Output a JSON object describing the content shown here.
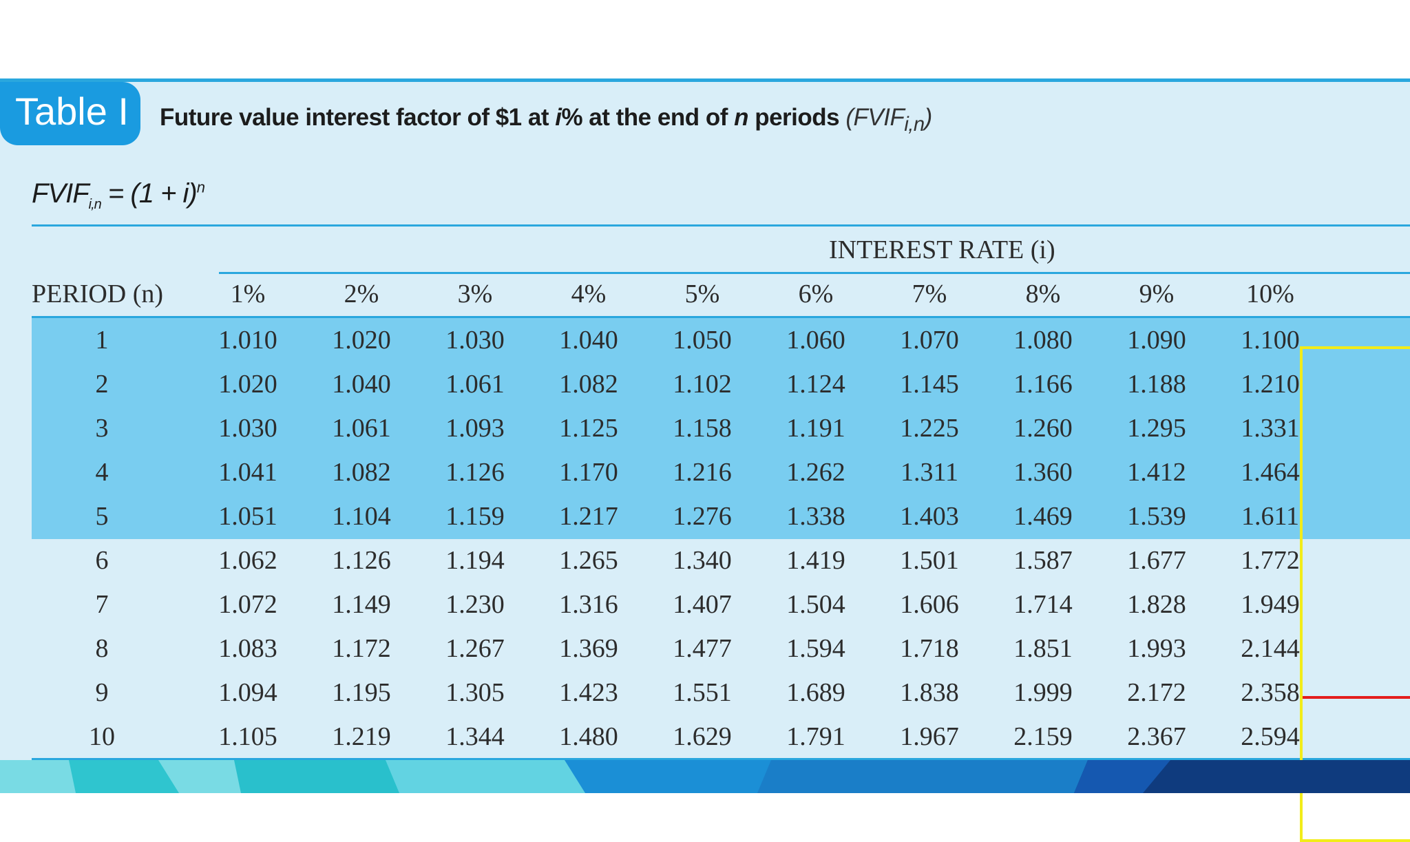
{
  "badge": "Table I",
  "caption": {
    "part1": "Future value interest factor of $1 at ",
    "i": "i",
    "part2": "% at the end of ",
    "n": "n",
    "part3": " periods ",
    "symbol": "(FVIF",
    "symbol_sub": "i,n",
    "symbol_close": ")"
  },
  "formula": {
    "lhs": "FVIF",
    "lhs_sub": "i,n",
    "rhs": " = (1 + i)",
    "rhs_sup": "n"
  },
  "interest_header": "INTEREST RATE (i)",
  "period_header": "PERIOD (n)",
  "rates": [
    "1%",
    "2%",
    "3%",
    "4%",
    "5%",
    "6%",
    "7%",
    "8%",
    "9%",
    "10%"
  ],
  "rows": [
    {
      "period": "1",
      "values": [
        "1.010",
        "1.020",
        "1.030",
        "1.040",
        "1.050",
        "1.060",
        "1.070",
        "1.080",
        "1.090",
        "1.100"
      ]
    },
    {
      "period": "2",
      "values": [
        "1.020",
        "1.040",
        "1.061",
        "1.082",
        "1.102",
        "1.124",
        "1.145",
        "1.166",
        "1.188",
        "1.210"
      ]
    },
    {
      "period": "3",
      "values": [
        "1.030",
        "1.061",
        "1.093",
        "1.125",
        "1.158",
        "1.191",
        "1.225",
        "1.260",
        "1.295",
        "1.331"
      ]
    },
    {
      "period": "4",
      "values": [
        "1.041",
        "1.082",
        "1.126",
        "1.170",
        "1.216",
        "1.262",
        "1.311",
        "1.360",
        "1.412",
        "1.464"
      ]
    },
    {
      "period": "5",
      "values": [
        "1.051",
        "1.104",
        "1.159",
        "1.217",
        "1.276",
        "1.338",
        "1.403",
        "1.469",
        "1.539",
        "1.611"
      ]
    },
    {
      "period": "6",
      "values": [
        "1.062",
        "1.126",
        "1.194",
        "1.265",
        "1.340",
        "1.419",
        "1.501",
        "1.587",
        "1.677",
        "1.772"
      ]
    },
    {
      "period": "7",
      "values": [
        "1.072",
        "1.149",
        "1.230",
        "1.316",
        "1.407",
        "1.504",
        "1.606",
        "1.714",
        "1.828",
        "1.949"
      ]
    },
    {
      "period": "8",
      "values": [
        "1.083",
        "1.172",
        "1.267",
        "1.369",
        "1.477",
        "1.594",
        "1.718",
        "1.851",
        "1.993",
        "2.144"
      ]
    },
    {
      "period": "9",
      "values": [
        "1.094",
        "1.195",
        "1.305",
        "1.423",
        "1.551",
        "1.689",
        "1.838",
        "1.999",
        "2.172",
        "2.358"
      ]
    },
    {
      "period": "10",
      "values": [
        "1.105",
        "1.219",
        "1.344",
        "1.480",
        "1.629",
        "1.791",
        "1.967",
        "2.159",
        "2.367",
        "2.594"
      ]
    }
  ],
  "colors": {
    "panel": "#d9eef8",
    "band": "#79cdf0",
    "accent": "#2aa7de",
    "highlight": "#f2ec1a",
    "marker": "#e41d1d"
  }
}
